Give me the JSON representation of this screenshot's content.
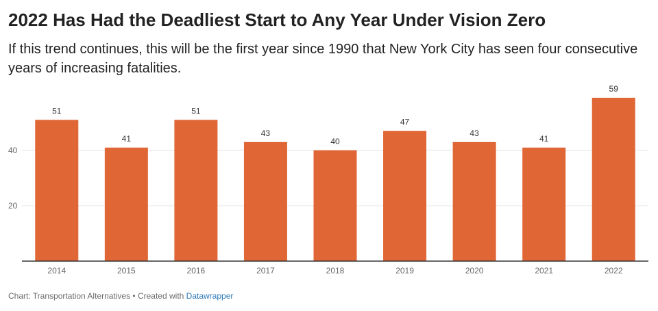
{
  "header": {
    "title": "2022 Has Had the Deadliest Start to Any Year Under Vision Zero",
    "subtitle": "If this trend continues, this will be the first year since 1990 that New York City has seen four consecutive years of increasing fatalities."
  },
  "footer": {
    "source": "Chart: Transportation Alternatives • Created with ",
    "tool": "Datawrapper"
  },
  "colors": {
    "bar": "#e06636",
    "grid": "#e6e6e6",
    "axis": "#333333",
    "tick_text": "#666666",
    "label_text": "#333333",
    "link": "#2f7ab9"
  },
  "chart_data": {
    "type": "bar",
    "title": "2022 Has Had the Deadliest Start to Any Year Under Vision Zero",
    "subtitle": "If this trend continues, this will be the first year since 1990 that New York City has seen four consecutive years of increasing fatalities.",
    "categories": [
      "2014",
      "2015",
      "2016",
      "2017",
      "2018",
      "2019",
      "2020",
      "2021",
      "2022"
    ],
    "values": [
      51,
      41,
      51,
      43,
      40,
      47,
      43,
      41,
      59
    ],
    "xlabel": "",
    "ylabel": "",
    "ylim": [
      0,
      59
    ],
    "yticks": [
      20,
      40
    ],
    "grid": true,
    "data_labels": true,
    "legend": "none"
  }
}
